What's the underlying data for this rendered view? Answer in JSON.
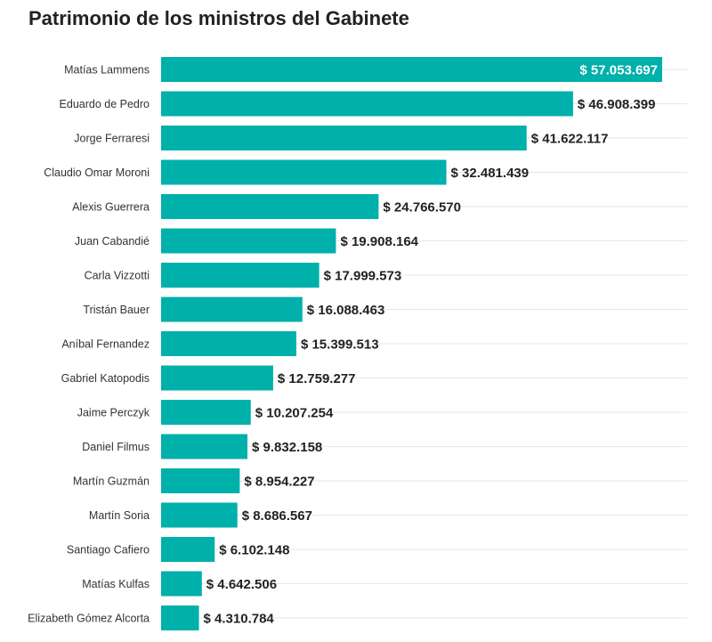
{
  "title": "Patrimonio de los ministros del Gabinete",
  "chart_data": {
    "type": "bar",
    "orientation": "horizontal",
    "title": "Patrimonio de los ministros del Gabinete",
    "xlabel": "",
    "ylabel": "",
    "bar_color": "#00b0aa",
    "value_label_prefix": "$ ",
    "categories": [
      "Matías Lammens",
      "Eduardo de Pedro",
      "Jorge Ferraresi",
      "Claudio Omar Moroni",
      "Alexis Guerrera",
      "Juan Cabandié",
      "Carla Vizzotti",
      "Tristán Bauer",
      "Aníbal Fernandez",
      "Gabriel Katopodis",
      "Jaime Perczyk",
      "Daniel Filmus",
      "Martín Guzmán",
      "Martín Soria",
      "Santiago Cafiero",
      "Matías Kulfas",
      "Elizabeth Gómez Alcorta"
    ],
    "values": [
      57053697,
      46908399,
      41622117,
      32481439,
      24766570,
      19908164,
      17999573,
      16088463,
      15399513,
      12759277,
      10207254,
      9832158,
      8954227,
      8686567,
      6102148,
      4642506,
      4310784
    ],
    "value_labels": [
      "$ 57.053.697",
      "$ 46.908.399",
      "$ 41.622.117",
      "$ 32.481.439",
      "$ 24.766.570",
      "$ 19.908.164",
      "$ 17.999.573",
      "$ 16.088.463",
      "$ 15.399.513",
      "$ 12.759.277",
      "$ 10.207.254",
      "$ 9.832.158",
      "$ 8.954.227",
      "$ 8.686.567",
      "$ 6.102.148",
      "$ 4.642.506",
      "$ 4.310.784"
    ],
    "xlim": [
      0,
      57053697
    ],
    "grid": true,
    "legend": "none"
  }
}
